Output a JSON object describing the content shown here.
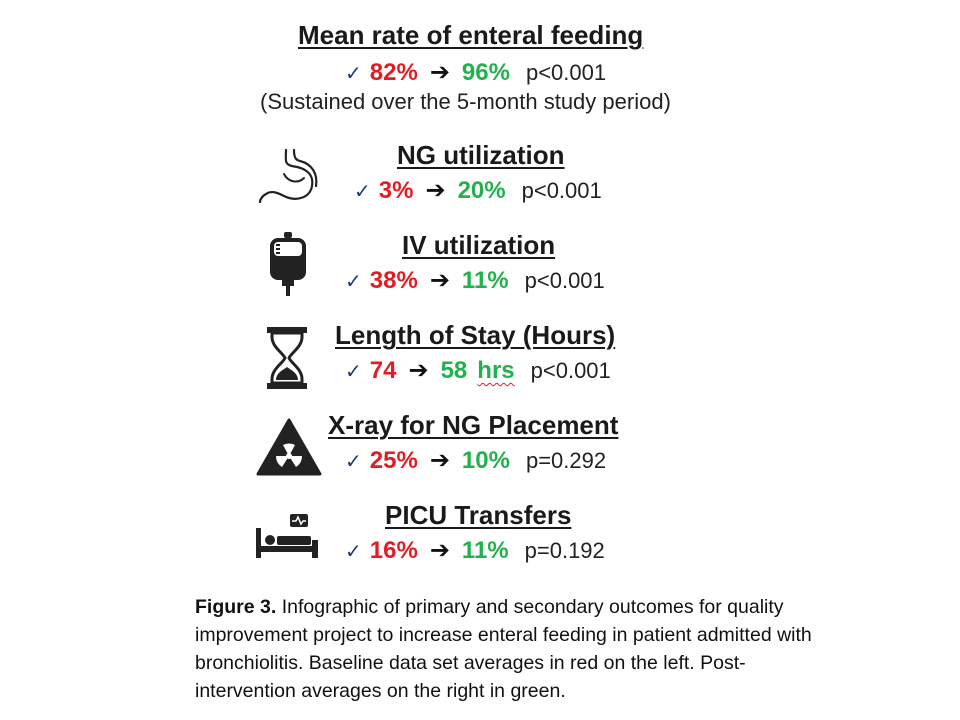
{
  "outcomes": [
    {
      "title": "Mean rate of enteral feeding",
      "before": "82%",
      "after": "96%",
      "unit": "",
      "p": "p<0.001",
      "note": "(Sustained over the 5-month study period)",
      "icon": ""
    },
    {
      "title": "NG utilization",
      "before": "3%",
      "after": "20%",
      "unit": "",
      "p": "p<0.001",
      "icon": "stomach-icon"
    },
    {
      "title": "IV utilization",
      "before": "38%",
      "after": "11%",
      "unit": "",
      "p": "p<0.001",
      "icon": "iv-bag-icon"
    },
    {
      "title": "Length of Stay (Hours)",
      "before": "74",
      "after": "58",
      "unit": "hrs",
      "p": "p<0.001",
      "icon": "hourglass-icon"
    },
    {
      "title": "X-ray for NG Placement",
      "before": "25%",
      "after": "10%",
      "unit": "",
      "p": "p=0.292",
      "icon": "radiation-icon"
    },
    {
      "title": "PICU Transfers",
      "before": "16%",
      "after": "11%",
      "unit": "",
      "p": "p=0.192",
      "icon": "hospital-bed-icon"
    }
  ],
  "symbols": {
    "check": "✓",
    "arrow": "➔"
  },
  "colors": {
    "before": "#e31c23",
    "after": "#22b14c"
  },
  "caption": {
    "label": "Figure 3.",
    "text": "Infographic of primary and secondary outcomes for quality improvement project to increase enteral feeding in patient admitted with bronchiolitis. Baseline data set averages in red on the left. Post-intervention averages on the right in green."
  }
}
